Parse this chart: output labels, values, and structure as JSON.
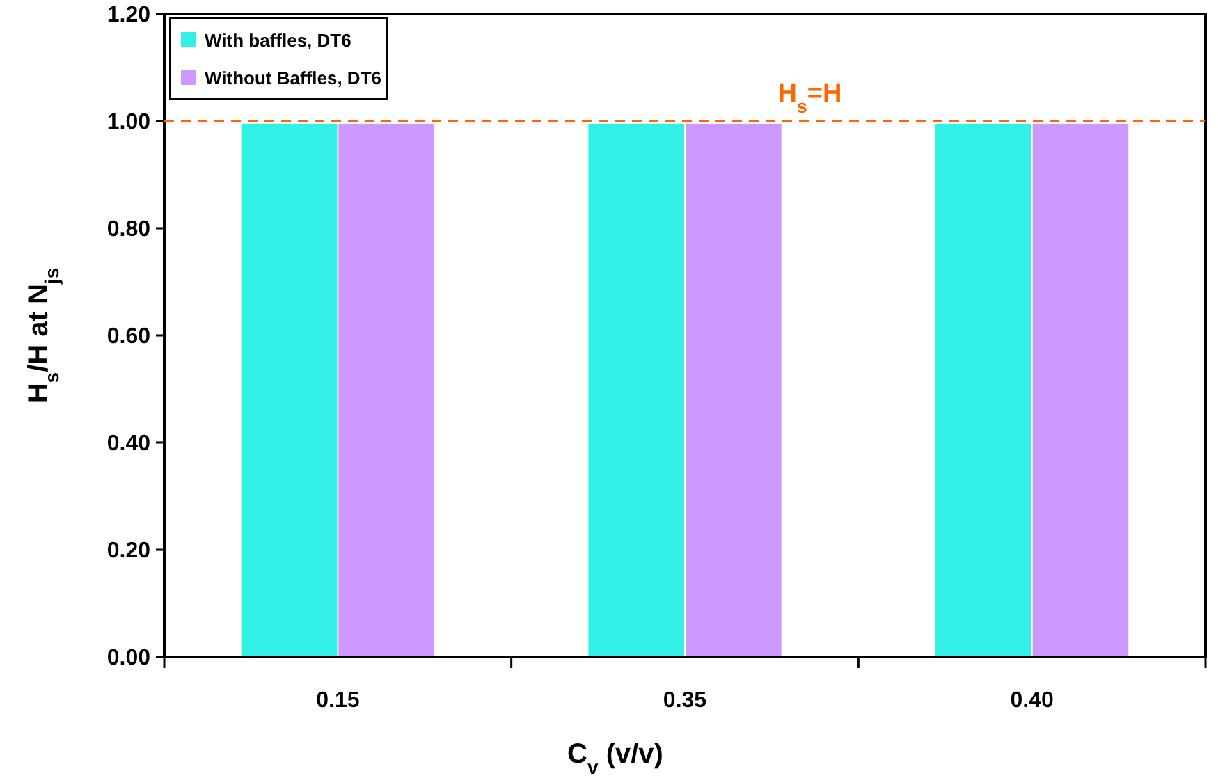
{
  "chart_data": {
    "type": "bar",
    "xlabel": "C$_{v}$ (v/v)",
    "ylabel": "H$_{s}$/H at N$_{js}$",
    "categories": [
      "0.15",
      "0.35",
      "0.40"
    ],
    "series": [
      {
        "name": "With baffles, DT6",
        "color": "#33f0e6",
        "values": [
          0.995,
          0.995,
          0.995
        ]
      },
      {
        "name": "Without Baffles, DT6",
        "color": "#cc99ff",
        "values": [
          0.995,
          0.995,
          0.995
        ]
      }
    ],
    "ylim": [
      0,
      1.2
    ],
    "yticks": [
      {
        "value": 0,
        "label": "0.00"
      },
      {
        "value": 0.2,
        "label": "0.20"
      },
      {
        "value": 0.4,
        "label": "0.40"
      },
      {
        "value": 0.6,
        "label": "0.60"
      },
      {
        "value": 0.8,
        "label": "0.80"
      },
      {
        "value": 1,
        "label": "1.00"
      },
      {
        "value": 1.2,
        "label": "1.20"
      }
    ],
    "ref_lines": [
      {
        "axis": "y",
        "value": 1,
        "label": "H$_{s}$=H",
        "color": "#ff6600",
        "line_style": "dashed"
      }
    ],
    "grid": false,
    "legend": "top left"
  }
}
